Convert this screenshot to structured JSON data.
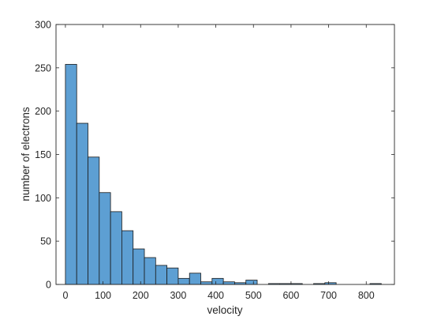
{
  "chart_data": {
    "type": "bar",
    "subtype": "histogram",
    "xlabel": "velocity",
    "ylabel": "number of electrons",
    "xlim": [
      -25,
      875
    ],
    "ylim": [
      0,
      300
    ],
    "xticks": [
      0,
      100,
      200,
      300,
      400,
      500,
      600,
      700,
      800
    ],
    "yticks": [
      0,
      50,
      100,
      150,
      200,
      250,
      300
    ],
    "bin_width": 30,
    "bin_starts": [
      0,
      30,
      60,
      90,
      120,
      150,
      180,
      210,
      240,
      270,
      300,
      330,
      360,
      390,
      420,
      450,
      480,
      510,
      540,
      570,
      600,
      630,
      660,
      690,
      720,
      750,
      780,
      810
    ],
    "values": [
      254,
      186,
      147,
      106,
      84,
      62,
      41,
      31,
      22,
      19,
      7,
      13,
      3,
      7,
      3,
      2,
      5,
      0,
      1,
      1,
      1,
      0,
      1,
      2,
      0,
      0,
      0,
      1
    ],
    "bar_color": "#5d9fd3",
    "edge_color": "#1a1a1a",
    "grid": false,
    "box": true
  }
}
